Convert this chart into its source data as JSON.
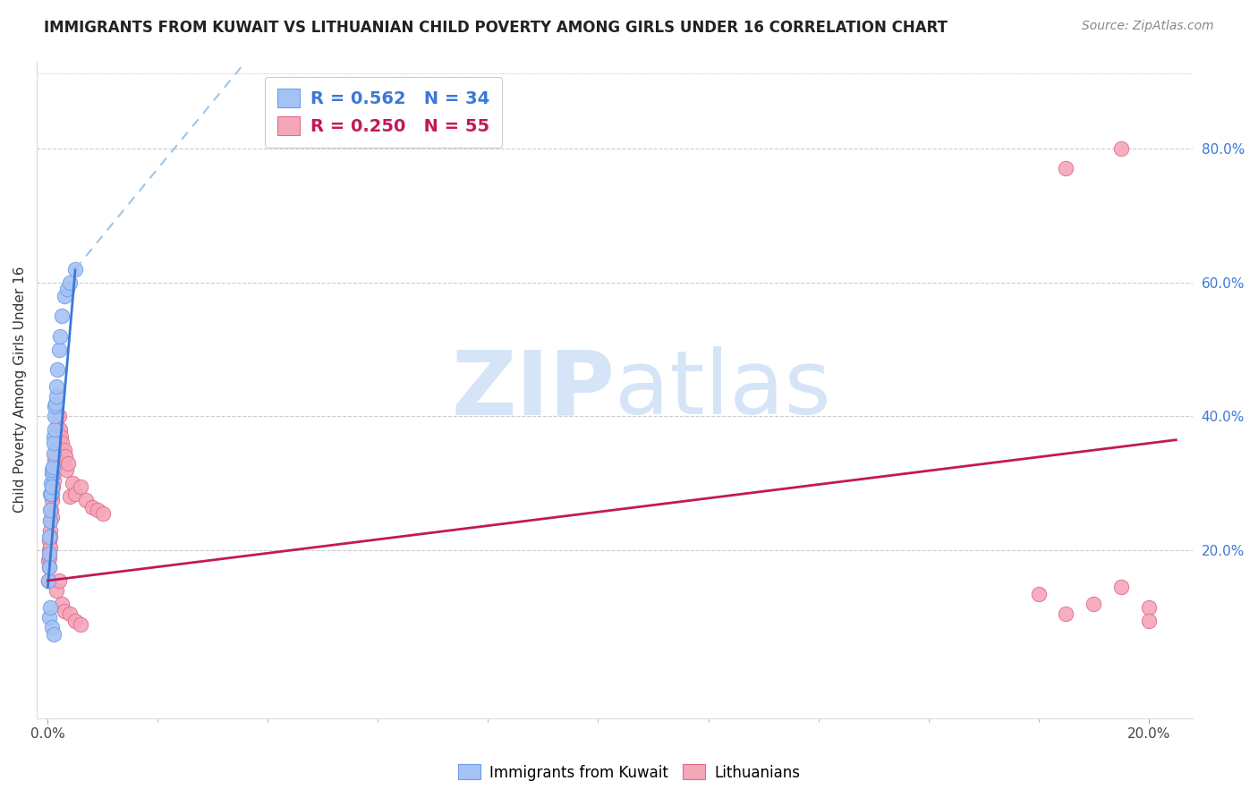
{
  "title": "IMMIGRANTS FROM KUWAIT VS LITHUANIAN CHILD POVERTY AMONG GIRLS UNDER 16 CORRELATION CHART",
  "source": "Source: ZipAtlas.com",
  "ylabel": "Child Poverty Among Girls Under 16",
  "legend_label1": "Immigrants from Kuwait",
  "legend_label2": "Lithuanians",
  "r1": "0.562",
  "n1": "34",
  "r2": "0.250",
  "n2": "55",
  "color1": "#a4c2f4",
  "color2": "#f4a7b9",
  "edge_color1": "#6d9eeb",
  "edge_color2": "#e06c8b",
  "line_color1": "#3c78d8",
  "line_color2": "#c2185b",
  "dash_color": "#9fc5e8",
  "right_axis_color": "#3c78d8",
  "kuwait_x": [
    0.0001,
    0.0002,
    0.0003,
    0.0003,
    0.0004,
    0.0005,
    0.0005,
    0.0006,
    0.0006,
    0.0007,
    0.0008,
    0.0008,
    0.0009,
    0.001,
    0.001,
    0.0011,
    0.0012,
    0.0012,
    0.0013,
    0.0014,
    0.0015,
    0.0016,
    0.0018,
    0.002,
    0.0022,
    0.0025,
    0.003,
    0.0035,
    0.004,
    0.005,
    0.0003,
    0.0005,
    0.0008,
    0.001
  ],
  "kuwait_y": [
    0.155,
    0.175,
    0.22,
    0.195,
    0.245,
    0.26,
    0.285,
    0.3,
    0.285,
    0.315,
    0.32,
    0.295,
    0.325,
    0.345,
    0.37,
    0.36,
    0.38,
    0.4,
    0.415,
    0.42,
    0.43,
    0.445,
    0.47,
    0.5,
    0.52,
    0.55,
    0.58,
    0.59,
    0.6,
    0.62,
    0.1,
    0.115,
    0.085,
    0.075
  ],
  "lith_x": [
    0.0001,
    0.0001,
    0.0002,
    0.0002,
    0.0003,
    0.0003,
    0.0004,
    0.0004,
    0.0005,
    0.0005,
    0.0006,
    0.0007,
    0.0007,
    0.0008,
    0.0009,
    0.001,
    0.0011,
    0.0012,
    0.0013,
    0.0014,
    0.0015,
    0.0016,
    0.0017,
    0.0018,
    0.002,
    0.0022,
    0.0024,
    0.0026,
    0.003,
    0.0032,
    0.0034,
    0.0036,
    0.004,
    0.0045,
    0.005,
    0.006,
    0.007,
    0.008,
    0.009,
    0.01,
    0.0015,
    0.002,
    0.0025,
    0.003,
    0.004,
    0.005,
    0.006,
    0.18,
    0.185,
    0.19,
    0.195,
    0.2,
    0.2,
    0.195,
    0.185
  ],
  "lith_y": [
    0.185,
    0.155,
    0.2,
    0.175,
    0.215,
    0.19,
    0.23,
    0.205,
    0.245,
    0.22,
    0.26,
    0.275,
    0.25,
    0.285,
    0.295,
    0.305,
    0.315,
    0.325,
    0.335,
    0.345,
    0.355,
    0.365,
    0.375,
    0.385,
    0.4,
    0.38,
    0.37,
    0.36,
    0.35,
    0.34,
    0.32,
    0.33,
    0.28,
    0.3,
    0.285,
    0.295,
    0.275,
    0.265,
    0.26,
    0.255,
    0.14,
    0.155,
    0.12,
    0.11,
    0.105,
    0.095,
    0.09,
    0.135,
    0.105,
    0.12,
    0.145,
    0.115,
    0.095,
    0.8,
    0.77
  ],
  "xlim": [
    -0.002,
    0.208
  ],
  "ylim": [
    -0.05,
    0.93
  ],
  "xtick_pos": [
    0.0,
    0.2
  ],
  "xtick_labels": [
    "0.0%",
    "20.0%"
  ],
  "ytick_right_pos": [
    0.2,
    0.4,
    0.6,
    0.8
  ],
  "ytick_right_labels": [
    "20.0%",
    "40.0%",
    "60.0%",
    "80.0%"
  ],
  "background_color": "#ffffff",
  "watermark_zip": "ZIP",
  "watermark_atlas": "atlas",
  "watermark_color": "#d6e4f7",
  "grid_color": "#cccccc"
}
